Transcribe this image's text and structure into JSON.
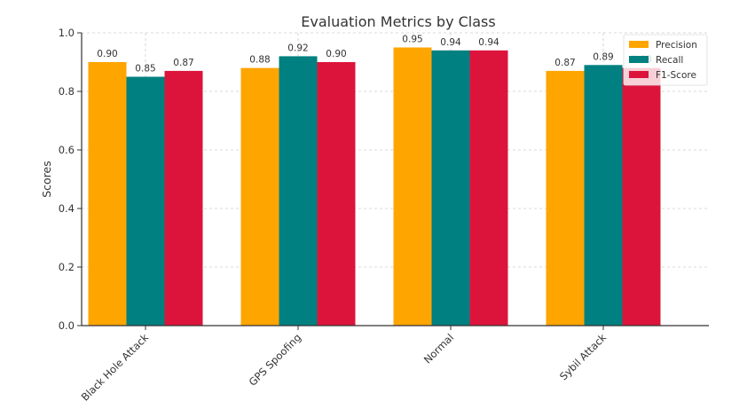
{
  "chart_data": {
    "type": "bar",
    "title": "Evaluation Metrics by Class",
    "xlabel": "",
    "ylabel": "Scores",
    "ylim": [
      0,
      1.0
    ],
    "yticks": [
      "0.0",
      "0.2",
      "0.4",
      "0.6",
      "0.8",
      "1.0"
    ],
    "grid": true,
    "legend_position": "top-right",
    "categories": [
      "Black Hole Attack",
      "GPS Spoofing",
      "Normal",
      "Sybil Attack"
    ],
    "series": [
      {
        "name": "Precision",
        "color": "#FFA500",
        "values": [
          0.9,
          0.88,
          0.95,
          0.87
        ],
        "labels": [
          "0.90",
          "0.88",
          "0.95",
          "0.87"
        ]
      },
      {
        "name": "Recall",
        "color": "#008080",
        "values": [
          0.85,
          0.92,
          0.94,
          0.89
        ],
        "labels": [
          "0.85",
          "0.92",
          "0.94",
          "0.89"
        ]
      },
      {
        "name": "F1-Score",
        "color": "#DC143C",
        "values": [
          0.87,
          0.9,
          0.94,
          0.88
        ],
        "labels": [
          "0.87",
          "0.90",
          "0.94",
          "0.88"
        ]
      }
    ]
  }
}
